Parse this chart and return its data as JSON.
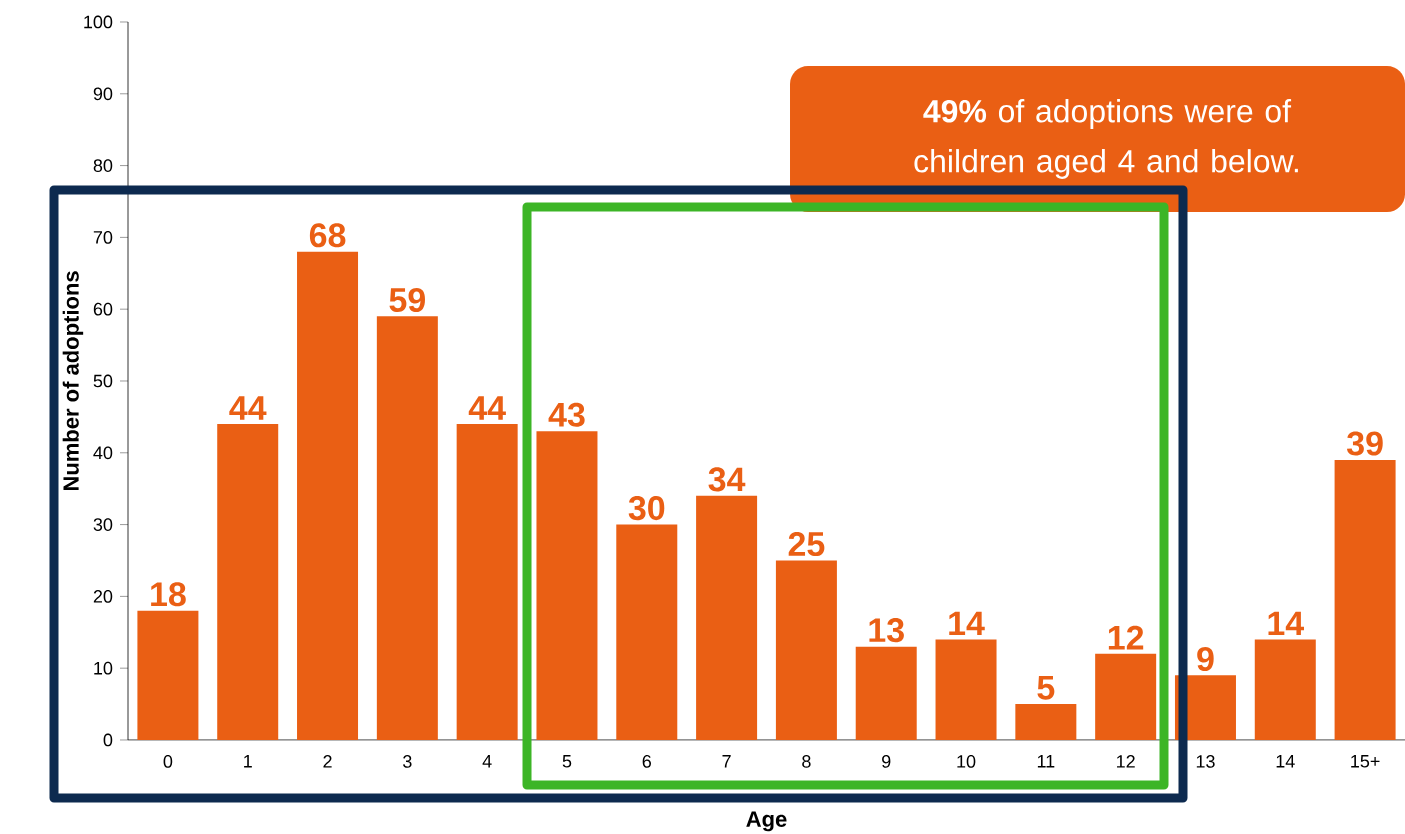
{
  "chart_data": {
    "type": "bar",
    "xlabel": "Age",
    "ylabel": "Number of adoptions",
    "categories": [
      "0",
      "1",
      "2",
      "3",
      "4",
      "5",
      "6",
      "7",
      "8",
      "9",
      "10",
      "11",
      "12",
      "13",
      "14",
      "15+"
    ],
    "values": [
      18,
      44,
      68,
      59,
      44,
      43,
      30,
      34,
      25,
      13,
      14,
      5,
      12,
      9,
      14,
      39
    ],
    "color": "#ea5f14",
    "ylim": [
      0,
      100
    ],
    "yticks": [
      0,
      10,
      20,
      30,
      40,
      50,
      60,
      70,
      80,
      90,
      100
    ],
    "data_labels": true,
    "annotations": [
      "**49%** of adoptions were of children aged 4 and below."
    ]
  }
}
